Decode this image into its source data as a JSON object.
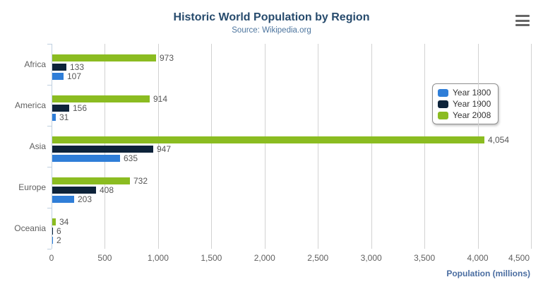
{
  "title": "Historic World Population by Region",
  "subtitle": "Source: Wikipedia.org",
  "axis": {
    "x_title": "Population (millions)",
    "x_tick_labels": [
      "0",
      "500",
      "1,000",
      "1,500",
      "2,000",
      "2,500",
      "3,000",
      "3,500",
      "4,000",
      "4,500"
    ]
  },
  "legend": {
    "items": [
      {
        "label": "Year 1800",
        "color": "#2f7ed8"
      },
      {
        "label": "Year 1900",
        "color": "#0d233a"
      },
      {
        "label": "Year 2008",
        "color": "#8bbc21"
      }
    ]
  },
  "colors": {
    "title": "#274b6d",
    "subtitle": "#4d759e",
    "axis_title": "#4a6da1",
    "axis_line": "#c0d0e0",
    "gridline": "#d2d2d2",
    "tick_labels": "#606060",
    "data_labels": "#565656",
    "menu_icon": "#666666"
  },
  "chart_data": {
    "type": "bar",
    "orientation": "horizontal",
    "title": "Historic World Population by Region",
    "subtitle": "Source: Wikipedia.org",
    "xlabel": "Population (millions)",
    "categories": [
      "Africa",
      "America",
      "Asia",
      "Europe",
      "Oceania"
    ],
    "series": [
      {
        "name": "Year 1800",
        "color": "#2f7ed8",
        "values": [
          107,
          31,
          635,
          203,
          2
        ]
      },
      {
        "name": "Year 1900",
        "color": "#0d233a",
        "values": [
          133,
          156,
          947,
          408,
          6
        ]
      },
      {
        "name": "Year 2008",
        "color": "#8bbc21",
        "values": [
          973,
          914,
          4054,
          732,
          34
        ]
      }
    ],
    "xlim": [
      0,
      4500
    ],
    "xticks": [
      0,
      500,
      1000,
      1500,
      2000,
      2500,
      3000,
      3500,
      4000,
      4500
    ],
    "grid": true,
    "data_labels": true,
    "legend_position": "right-middle",
    "bar_order_top_to_bottom": [
      "Year 2008",
      "Year 1900",
      "Year 1800"
    ]
  }
}
